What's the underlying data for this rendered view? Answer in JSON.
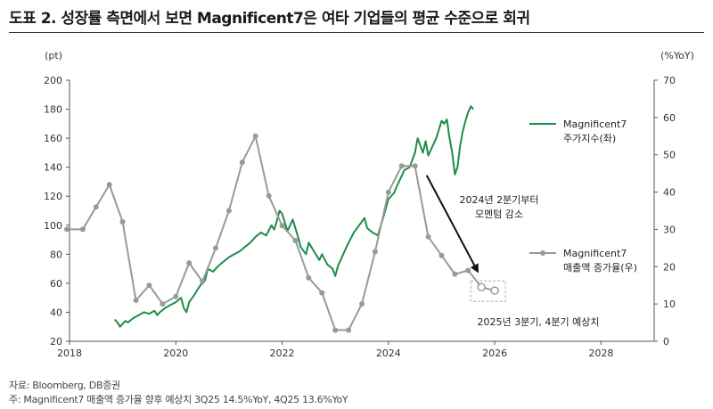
{
  "title": "도표 2. 성장률 측면에서 보면 Magnificent7은 여타 기업들의 평균 수준으로 회귀",
  "footer": {
    "source": "자료: Bloomberg, DB증권",
    "note": "주: Magnificent7 매출액 증가율 향후 예상치 3Q25 14.5%YoY, 4Q25 13.6%YoY"
  },
  "chart_data": {
    "type": "line",
    "x_label_ticks": [
      "2018",
      "2020",
      "2022",
      "2024",
      "2026",
      "2028"
    ],
    "xlim": [
      2018,
      2029
    ],
    "left_axis": {
      "unit": "(pt)",
      "range": [
        20,
        200
      ],
      "ticks": [
        "20",
        "40",
        "60",
        "80",
        "100",
        "120",
        "140",
        "160",
        "180",
        "200"
      ]
    },
    "right_axis": {
      "unit": "(%YoY)",
      "range": [
        0,
        70
      ],
      "ticks": [
        "0",
        "10",
        "20",
        "30",
        "40",
        "50",
        "60",
        "70"
      ]
    },
    "colors": {
      "index": "#1e8c4a",
      "growth": "#999999",
      "arrow": "#111111"
    },
    "series": [
      {
        "name": "Magnificent7\n주가지수(좌)",
        "axis": "left",
        "points": [
          [
            2018.85,
            35
          ],
          [
            2018.9,
            33
          ],
          [
            2018.95,
            30
          ],
          [
            2019.0,
            32
          ],
          [
            2019.05,
            34
          ],
          [
            2019.1,
            33
          ],
          [
            2019.2,
            36
          ],
          [
            2019.3,
            38
          ],
          [
            2019.4,
            40
          ],
          [
            2019.5,
            39
          ],
          [
            2019.6,
            41
          ],
          [
            2019.65,
            38
          ],
          [
            2019.7,
            40
          ],
          [
            2019.8,
            43
          ],
          [
            2019.9,
            45
          ],
          [
            2020.0,
            47
          ],
          [
            2020.1,
            50
          ],
          [
            2020.15,
            43
          ],
          [
            2020.2,
            40
          ],
          [
            2020.25,
            47
          ],
          [
            2020.35,
            52
          ],
          [
            2020.45,
            58
          ],
          [
            2020.55,
            62
          ],
          [
            2020.6,
            70
          ],
          [
            2020.7,
            68
          ],
          [
            2020.8,
            72
          ],
          [
            2020.9,
            75
          ],
          [
            2021.0,
            78
          ],
          [
            2021.1,
            80
          ],
          [
            2021.2,
            82
          ],
          [
            2021.3,
            85
          ],
          [
            2021.4,
            88
          ],
          [
            2021.5,
            92
          ],
          [
            2021.6,
            95
          ],
          [
            2021.7,
            93
          ],
          [
            2021.8,
            100
          ],
          [
            2021.85,
            97
          ],
          [
            2021.9,
            103
          ],
          [
            2021.95,
            110
          ],
          [
            2022.0,
            108
          ],
          [
            2022.05,
            102
          ],
          [
            2022.1,
            96
          ],
          [
            2022.2,
            104
          ],
          [
            2022.3,
            92
          ],
          [
            2022.35,
            85
          ],
          [
            2022.45,
            80
          ],
          [
            2022.5,
            88
          ],
          [
            2022.6,
            82
          ],
          [
            2022.7,
            76
          ],
          [
            2022.75,
            80
          ],
          [
            2022.85,
            73
          ],
          [
            2022.95,
            70
          ],
          [
            2023.0,
            65
          ],
          [
            2023.05,
            72
          ],
          [
            2023.15,
            80
          ],
          [
            2023.25,
            88
          ],
          [
            2023.35,
            95
          ],
          [
            2023.45,
            100
          ],
          [
            2023.55,
            105
          ],
          [
            2023.6,
            98
          ],
          [
            2023.7,
            95
          ],
          [
            2023.8,
            93
          ],
          [
            2023.9,
            105
          ],
          [
            2024.0,
            118
          ],
          [
            2024.1,
            122
          ],
          [
            2024.2,
            130
          ],
          [
            2024.3,
            138
          ],
          [
            2024.4,
            140
          ],
          [
            2024.5,
            150
          ],
          [
            2024.55,
            160
          ],
          [
            2024.6,
            155
          ],
          [
            2024.65,
            150
          ],
          [
            2024.7,
            158
          ],
          [
            2024.75,
            148
          ],
          [
            2024.8,
            152
          ],
          [
            2024.9,
            160
          ],
          [
            2025.0,
            172
          ],
          [
            2025.05,
            170
          ],
          [
            2025.1,
            173
          ],
          [
            2025.15,
            160
          ],
          [
            2025.2,
            150
          ],
          [
            2025.25,
            135
          ],
          [
            2025.3,
            140
          ],
          [
            2025.35,
            155
          ],
          [
            2025.4,
            165
          ],
          [
            2025.45,
            172
          ],
          [
            2025.5,
            178
          ],
          [
            2025.55,
            182
          ],
          [
            2025.6,
            180
          ]
        ]
      },
      {
        "name": "Magnificent7\n매출액 증가율(우)",
        "axis": "right",
        "points": [
          [
            2017.95,
            30
          ],
          [
            2018.25,
            30
          ],
          [
            2018.5,
            36
          ],
          [
            2018.75,
            42
          ],
          [
            2019.0,
            32
          ],
          [
            2019.25,
            11
          ],
          [
            2019.5,
            15
          ],
          [
            2019.75,
            10
          ],
          [
            2020.0,
            12
          ],
          [
            2020.25,
            21
          ],
          [
            2020.5,
            16
          ],
          [
            2020.75,
            25
          ],
          [
            2021.0,
            35
          ],
          [
            2021.25,
            48
          ],
          [
            2021.5,
            55
          ],
          [
            2021.75,
            39
          ],
          [
            2022.0,
            31
          ],
          [
            2022.25,
            27
          ],
          [
            2022.5,
            17
          ],
          [
            2022.75,
            13
          ],
          [
            2023.0,
            3
          ],
          [
            2023.25,
            3
          ],
          [
            2023.5,
            10
          ],
          [
            2023.75,
            24
          ],
          [
            2024.0,
            40
          ],
          [
            2024.25,
            47
          ],
          [
            2024.5,
            47
          ],
          [
            2024.75,
            28
          ],
          [
            2025.0,
            23
          ],
          [
            2025.25,
            18
          ],
          [
            2025.5,
            19
          ]
        ],
        "estimates": [
          [
            2025.75,
            14.5
          ],
          [
            2026.0,
            13.6
          ]
        ]
      }
    ],
    "annotations": {
      "momentum": "2024년 2분기부터\n모멘텀 감소",
      "estimate": "2025년 3분기, 4분기 예상치"
    },
    "grid": false,
    "legend": "right"
  }
}
